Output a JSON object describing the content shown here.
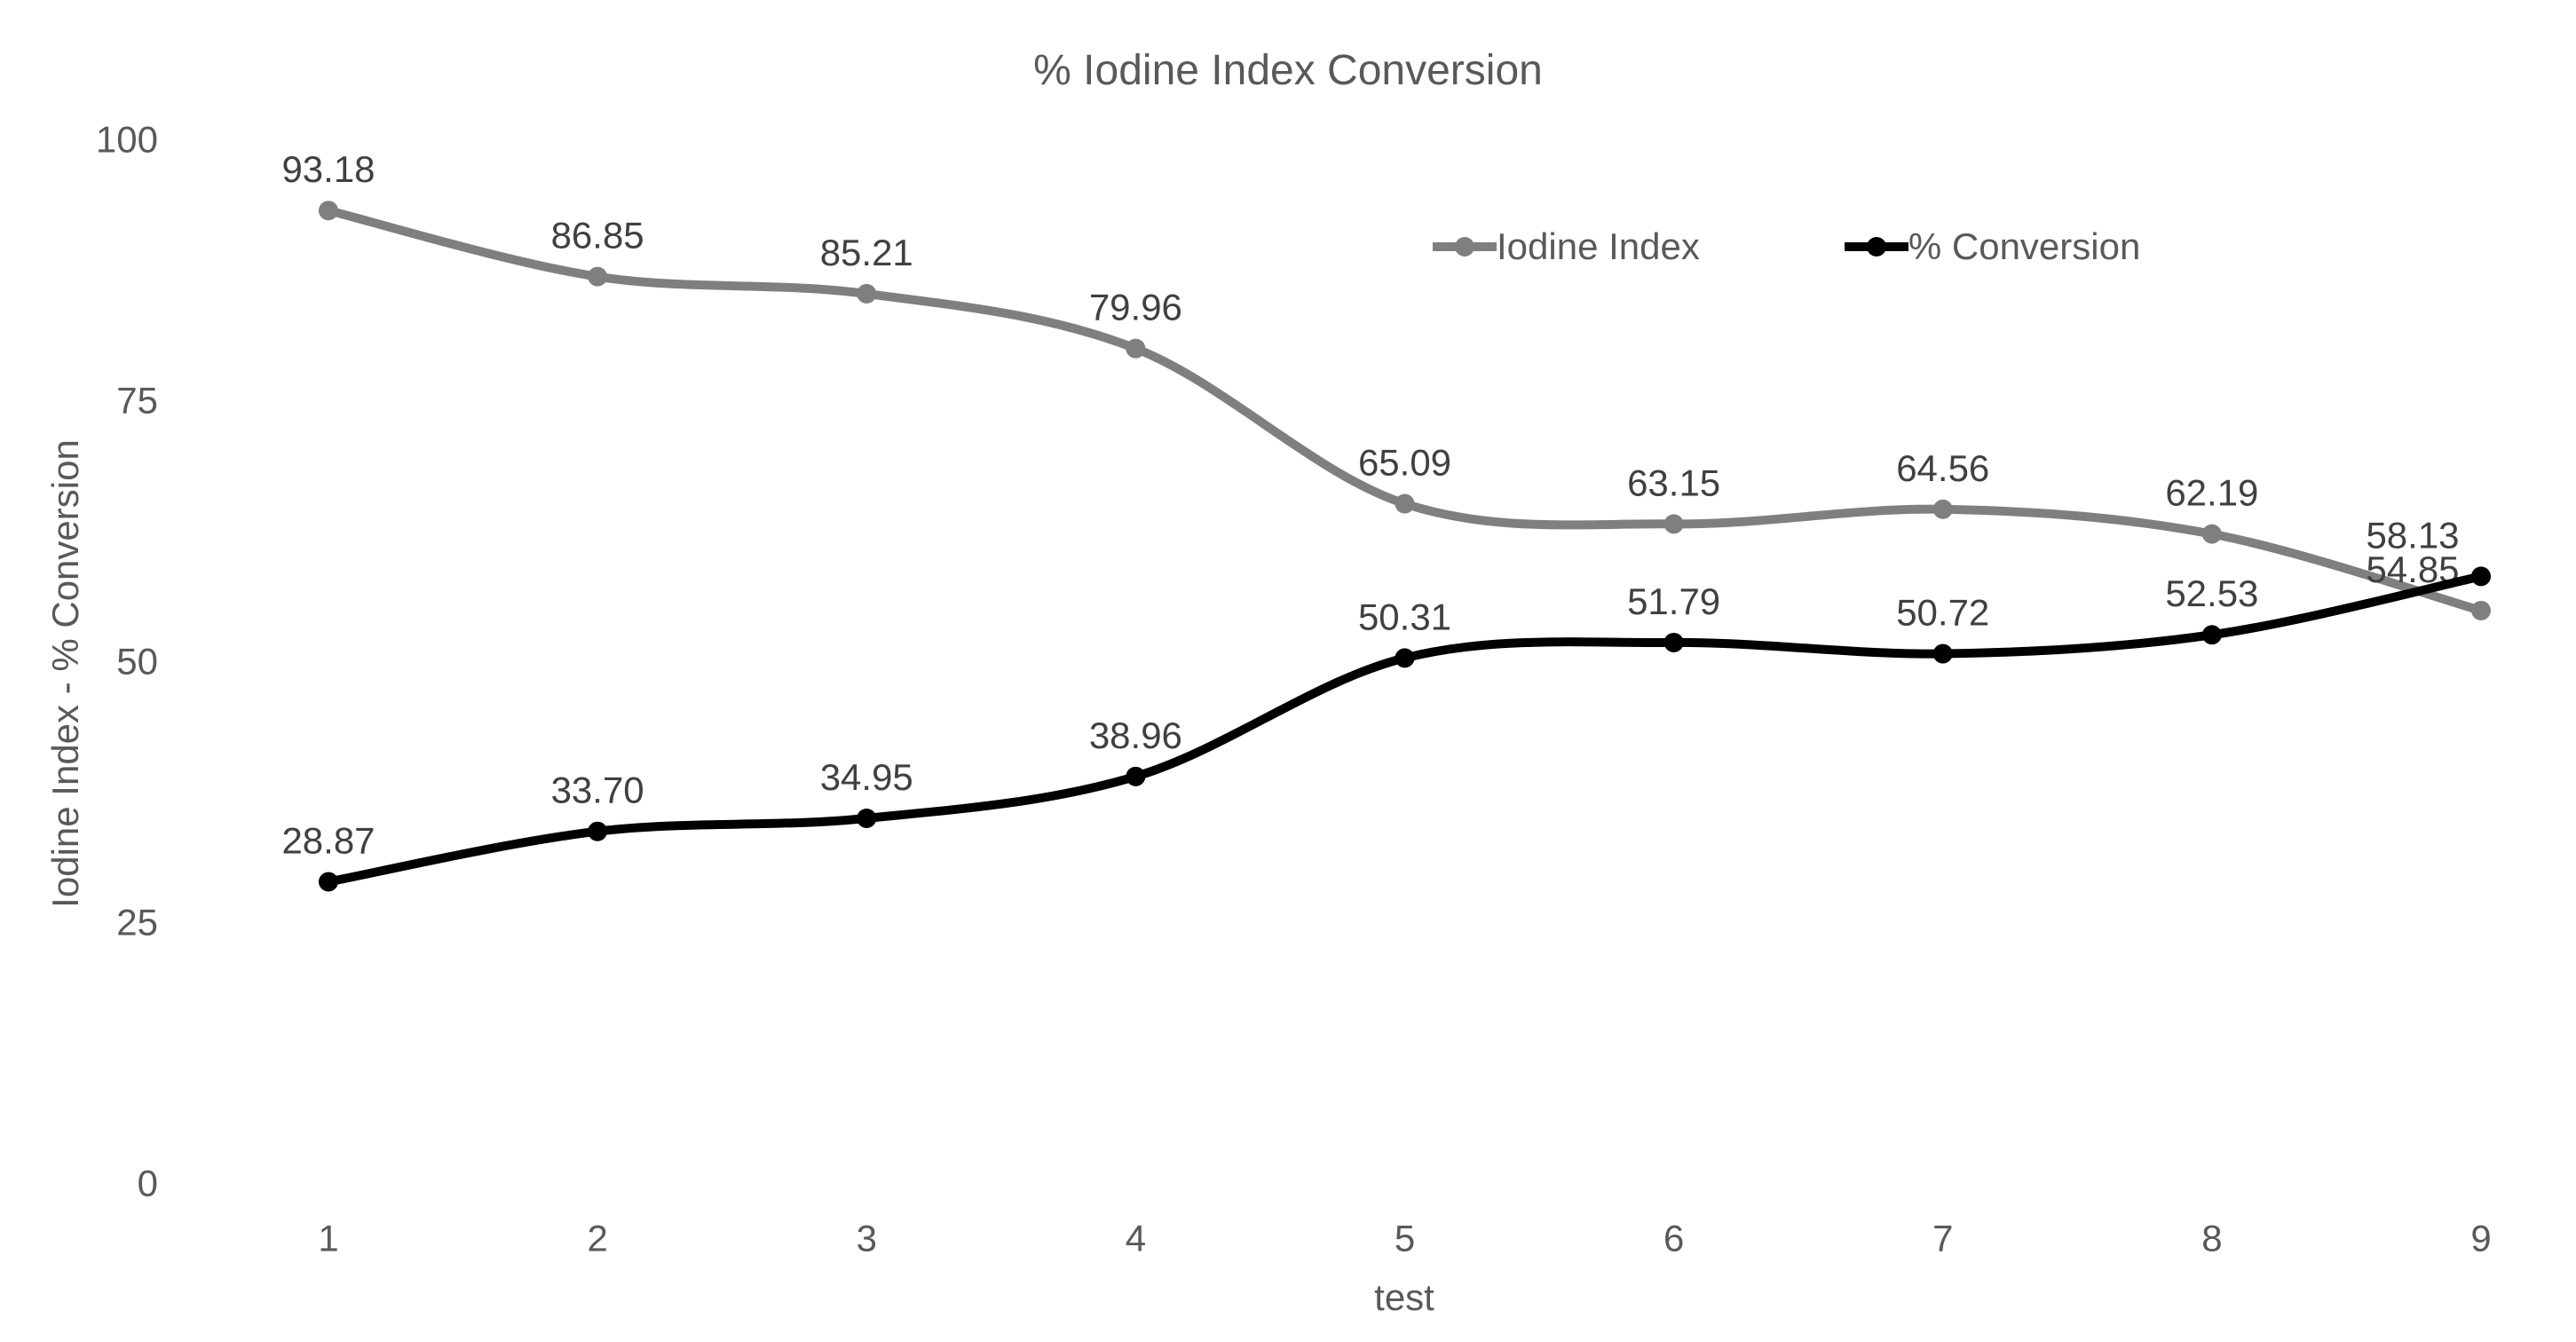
{
  "chart_data": {
    "type": "line",
    "title": "% Iodine Index Conversion",
    "xlabel": "test",
    "ylabel": "Iodine Index - % Conversion",
    "x": [
      1,
      2,
      3,
      4,
      5,
      6,
      7,
      8,
      9
    ],
    "ylim": [
      0,
      100
    ],
    "yticks": [
      0,
      25,
      50,
      75,
      100
    ],
    "grid": false,
    "legend_position": "inside-top-right",
    "data_labels": "above-points, 2 decimals",
    "line_style": "smoothed, round markers",
    "series": [
      {
        "name": "Iodine Index",
        "color": "#7F7F7F",
        "values": [
          93.18,
          86.85,
          85.21,
          79.96,
          65.09,
          63.15,
          64.56,
          62.19,
          54.85
        ]
      },
      {
        "name": "% Conversion",
        "color": "#000000",
        "values": [
          28.87,
          33.7,
          34.95,
          38.96,
          50.31,
          51.79,
          50.72,
          52.53,
          58.13
        ]
      }
    ],
    "colors": {
      "background": "#FFFFFF",
      "title_text": "#595959",
      "axis_text": "#595959",
      "data_label_text": "#404040"
    }
  }
}
